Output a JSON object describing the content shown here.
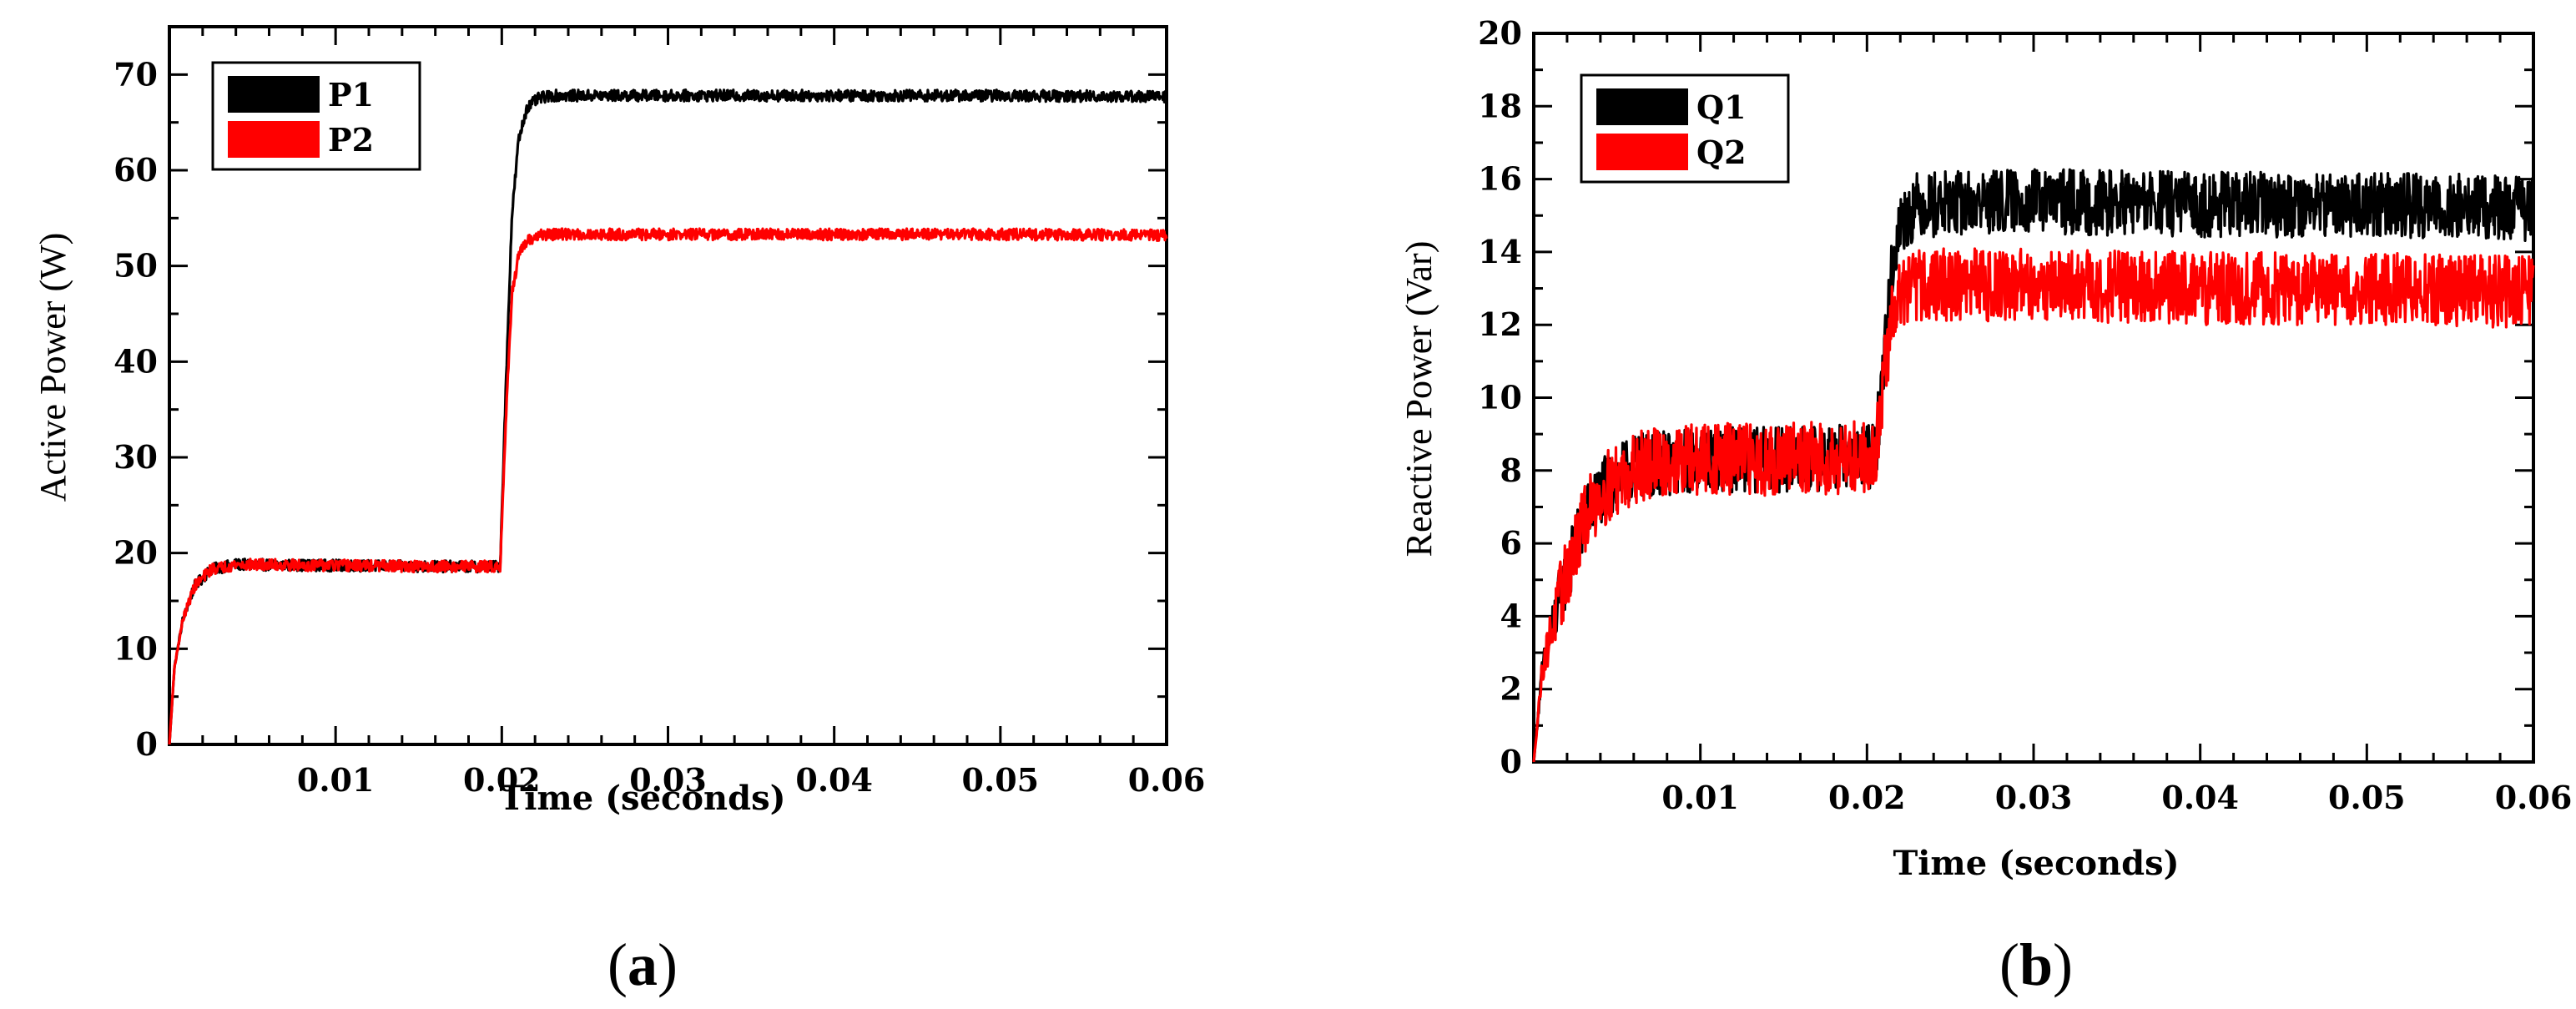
{
  "chart_data": [
    {
      "type": "line",
      "caption": "a",
      "xlabel": "Time (seconds)",
      "ylabel": "Active Power (W)",
      "xlim": [
        0,
        0.06
      ],
      "ylim": [
        0,
        75
      ],
      "xticks": [
        0.01,
        0.02,
        0.03,
        0.04,
        0.05,
        0.06
      ],
      "xtick_labels": [
        "0.01",
        "0.02",
        "0.03",
        "0.04",
        "0.05",
        "0.06"
      ],
      "yticks": [
        0,
        10,
        20,
        30,
        40,
        50,
        60,
        70
      ],
      "ytick_labels": [
        "0",
        "10",
        "20",
        "30",
        "40",
        "50",
        "60",
        "70"
      ],
      "legend_position": "top-left",
      "series": [
        {
          "name": "P1",
          "color": "#000000",
          "x": [
            0,
            0.0003,
            0.0008,
            0.0015,
            0.0025,
            0.004,
            0.01,
            0.015,
            0.0199,
            0.0202,
            0.0206,
            0.021,
            0.0215,
            0.0222,
            0.023,
            0.03,
            0.04,
            0.05,
            0.06
          ],
          "y": [
            0,
            8,
            13,
            16.5,
            18.3,
            18.8,
            18.7,
            18.6,
            18.6,
            35,
            55,
            63,
            66.5,
            67.5,
            67.8,
            67.8,
            67.8,
            67.8,
            67.7
          ],
          "noise": 0.6
        },
        {
          "name": "P2",
          "color": "#ff0000",
          "x": [
            0,
            0.0003,
            0.0008,
            0.0015,
            0.0025,
            0.004,
            0.01,
            0.015,
            0.0199,
            0.0202,
            0.0206,
            0.021,
            0.0215,
            0.0222,
            0.023,
            0.03,
            0.04,
            0.05,
            0.06
          ],
          "y": [
            0,
            8,
            13,
            16.5,
            18.3,
            18.8,
            18.7,
            18.6,
            18.6,
            32,
            47,
            51,
            52.5,
            53.2,
            53.3,
            53.3,
            53.3,
            53.3,
            53.2
          ],
          "noise": 0.6
        }
      ]
    },
    {
      "type": "line",
      "caption": "b",
      "xlabel": "Time (seconds)",
      "ylabel": "Reactive Power (Var)",
      "xlim": [
        0,
        0.06
      ],
      "ylim": [
        0,
        20
      ],
      "xticks": [
        0.01,
        0.02,
        0.03,
        0.04,
        0.05,
        0.06
      ],
      "xtick_labels": [
        "0.01",
        "0.02",
        "0.03",
        "0.04",
        "0.05",
        "0.06"
      ],
      "yticks": [
        0,
        2,
        4,
        6,
        8,
        10,
        12,
        14,
        16,
        18,
        20
      ],
      "ytick_labels": [
        "0",
        "2",
        "4",
        "6",
        "8",
        "10",
        "12",
        "14",
        "16",
        "18",
        "20"
      ],
      "legend_position": "top-left",
      "series": [
        {
          "name": "Q1",
          "color": "#000000",
          "x": [
            0,
            0.0005,
            0.001,
            0.002,
            0.003,
            0.004,
            0.006,
            0.01,
            0.015,
            0.0205,
            0.021,
            0.0215,
            0.022,
            0.023,
            0.03,
            0.04,
            0.05,
            0.06
          ],
          "y": [
            0,
            2.5,
            3.5,
            5.2,
            6.6,
            7.4,
            8.1,
            8.3,
            8.3,
            8.4,
            11,
            13.5,
            14.8,
            15.3,
            15.4,
            15.3,
            15.3,
            15.2
          ],
          "noise": 0.9
        },
        {
          "name": "Q2",
          "color": "#ff0000",
          "x": [
            0,
            0.0005,
            0.001,
            0.002,
            0.003,
            0.004,
            0.006,
            0.01,
            0.015,
            0.0205,
            0.021,
            0.0215,
            0.022,
            0.023,
            0.03,
            0.04,
            0.05,
            0.06
          ],
          "y": [
            0,
            2.5,
            3.5,
            5.2,
            6.6,
            7.4,
            8.1,
            8.3,
            8.3,
            8.4,
            10.5,
            12.2,
            12.9,
            13.1,
            13.1,
            13.0,
            13.0,
            12.9
          ],
          "noise": 1.0
        }
      ]
    }
  ]
}
